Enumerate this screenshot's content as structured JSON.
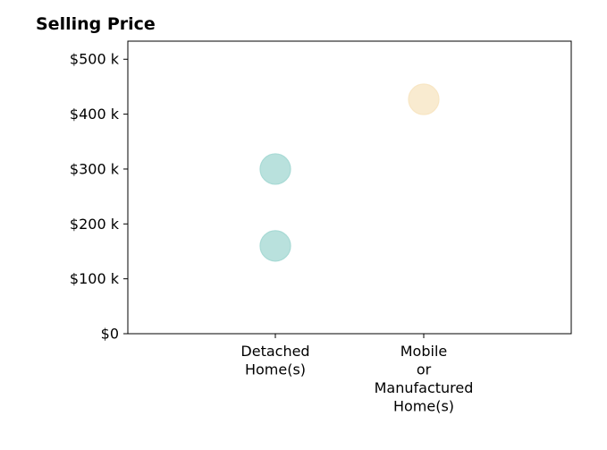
{
  "chart_data": {
    "type": "scatter",
    "title": "Selling Price",
    "xlabel": "",
    "ylabel": "",
    "categories": [
      [
        "Detached",
        "Home(s)"
      ],
      [
        "Mobile",
        "or",
        "Manufactured",
        "Home(s)"
      ]
    ],
    "ylim": [
      0,
      533
    ],
    "yticks": [
      0,
      100,
      200,
      300,
      400,
      500
    ],
    "ytick_labels": [
      "$0",
      "$100 k",
      "$200 k",
      "$300 k",
      "$400 k",
      "$500 k"
    ],
    "y_unit": "thousand dollars",
    "grid": false,
    "points": [
      {
        "category": 0,
        "value": 160,
        "color": "#a8dad5"
      },
      {
        "category": 0,
        "value": 300,
        "color": "#a8dad5"
      },
      {
        "category": 1,
        "value": 427,
        "color": "#f8e6c4"
      }
    ]
  }
}
